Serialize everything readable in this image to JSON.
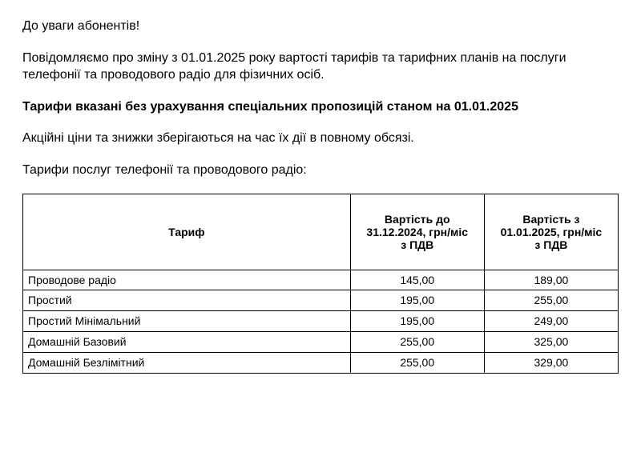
{
  "heading": "До уваги абонентів!",
  "paragraph1": "Повідомляємо про зміну з 01.01.2025 року вартості тарифів та тарифних планів на послуги телефонії та проводового радіо для фізичних осіб.",
  "paragraph2": " Тарифи вказані без урахування спеціальних пропозицій станом на 01.01.2025",
  "paragraph3": "Акційні ціни та знижки зберігаються на час їх дії в повному обсязі.",
  "paragraph4": "Тарифи послуг телефонії та проводового радіо:",
  "table": {
    "headers": {
      "tariff": "Тариф",
      "priceBefore": "Вартість до 31.12.2024, грн/міс з ПДВ",
      "priceAfter": "Вартість з 01.01.2025, грн/міс з ПДВ"
    },
    "rows": [
      {
        "name": "Проводове радіо",
        "before": "145,00",
        "after": "189,00"
      },
      {
        "name": "Простий",
        "before": "195,00",
        "after": "255,00"
      },
      {
        "name": "Простий Мінімальний",
        "before": "195,00",
        "after": "249,00"
      },
      {
        "name": "Домашній Базовий",
        "before": "255,00",
        "after": "325,00"
      },
      {
        "name": "Домашній Безлімітний",
        "before": "255,00",
        "after": "329,00"
      }
    ]
  }
}
